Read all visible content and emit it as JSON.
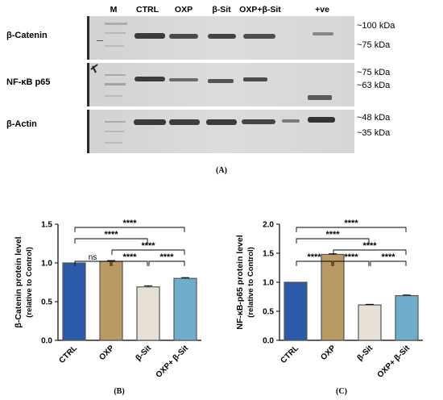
{
  "panel_a": {
    "letter": "(A)",
    "lanes": [
      "M",
      "CTRL",
      "OXP",
      "β-Sit",
      "OXP+β-Sit",
      "+ve"
    ],
    "rows": [
      {
        "label": "β-Catenin",
        "markers": [
          "~100 kDa",
          "~75 kDa"
        ]
      },
      {
        "label": "NF-κB p65",
        "markers": [
          "~75 kDa",
          "~63 kDa"
        ]
      },
      {
        "label": "β-Actin",
        "markers": [
          "~48 kDa",
          "~35 kDa"
        ]
      }
    ]
  },
  "chart_data": [
    {
      "type": "bar",
      "panel_letter": "(B)",
      "categories": [
        "CTRL",
        "OXP",
        "β-Sit",
        "OXP+ β-Sit"
      ],
      "values": [
        1.0,
        1.02,
        0.69,
        0.8
      ],
      "errors": [
        0.0,
        0.01,
        0.015,
        0.01
      ],
      "colors": [
        "#2a5aa8",
        "#b99a64",
        "#e6e0d6",
        "#6eaecb"
      ],
      "ylabel": "β-Catenin protein level",
      "ylabel2": "(relative to Control)",
      "ylim": [
        0,
        1.5
      ],
      "yticks": [
        "0.0",
        "0.5",
        "1.0",
        "1.5"
      ],
      "significance": [
        {
          "from": 0,
          "to": 1,
          "label": "ns"
        },
        {
          "from": 1,
          "to": 2,
          "label": "****"
        },
        {
          "from": 2,
          "to": 3,
          "label": "****"
        },
        {
          "from": 0,
          "to": 2,
          "label": "****"
        },
        {
          "from": 1,
          "to": 3,
          "label": "****"
        },
        {
          "from": 0,
          "to": 3,
          "label": "****"
        }
      ]
    },
    {
      "type": "bar",
      "panel_letter": "(C)",
      "categories": [
        "CTRL",
        "OXP",
        "β-Sit",
        "OXP+ β-Sit"
      ],
      "values": [
        1.0,
        1.48,
        0.61,
        0.77
      ],
      "errors": [
        0.0,
        0.01,
        0.01,
        0.01
      ],
      "colors": [
        "#2a5aa8",
        "#b99a64",
        "#e6e0d6",
        "#6eaecb"
      ],
      "ylabel": "NF-κB-p65 protein level",
      "ylabel2": "(relative to Control)",
      "ylim": [
        0,
        2.0
      ],
      "yticks": [
        "0.0",
        "0.5",
        "1.0",
        "1.5",
        "2.0"
      ],
      "significance": [
        {
          "from": 0,
          "to": 1,
          "label": "****"
        },
        {
          "from": 1,
          "to": 2,
          "label": "****"
        },
        {
          "from": 2,
          "to": 3,
          "label": "****"
        },
        {
          "from": 0,
          "to": 2,
          "label": "****"
        },
        {
          "from": 1,
          "to": 3,
          "label": "****"
        },
        {
          "from": 0,
          "to": 3,
          "label": "****"
        }
      ]
    }
  ]
}
